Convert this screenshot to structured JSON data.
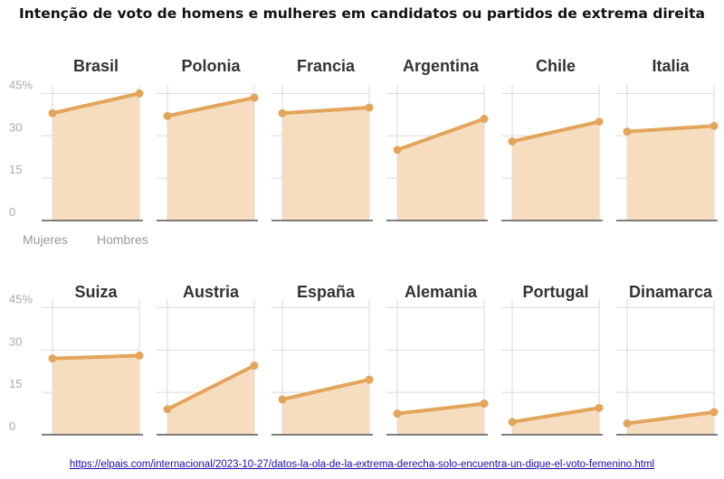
{
  "title": "Intenção de voto de homens e mulheres em candidatos ou partidos de extrema direita",
  "source_url": "https://elpais.com/internacional/2023-10-27/datos-la-ola-de-la-extrema-derecha-solo-encuentra-un-dique-el-voto-femenino.html",
  "colors": {
    "line": "#e2a55a",
    "area": "#f6ddc0",
    "grid": "#d9d9d9",
    "axis": "#555555"
  },
  "chart_data": {
    "type": "area",
    "categories": [
      "Mujeres",
      "Hombres"
    ],
    "ylim": [
      0,
      48
    ],
    "yticks": [
      0,
      15,
      30,
      45
    ],
    "ytick_labels": [
      "0",
      "15",
      "30",
      "45%"
    ],
    "grid": true,
    "panels": [
      {
        "name": "Brasil",
        "values": [
          38,
          45
        ]
      },
      {
        "name": "Polonia",
        "values": [
          37,
          43.5
        ]
      },
      {
        "name": "Francia",
        "values": [
          38,
          40
        ]
      },
      {
        "name": "Argentina",
        "values": [
          25,
          36
        ]
      },
      {
        "name": "Chile",
        "values": [
          28,
          35
        ]
      },
      {
        "name": "Italia",
        "values": [
          31.5,
          33.5
        ]
      },
      {
        "name": "Suiza",
        "values": [
          27,
          28
        ]
      },
      {
        "name": "Austria",
        "values": [
          9,
          24.5
        ]
      },
      {
        "name": "España",
        "values": [
          12.5,
          19.5
        ]
      },
      {
        "name": "Alemania",
        "values": [
          7.5,
          11
        ]
      },
      {
        "name": "Portugal",
        "values": [
          4.5,
          9.5
        ]
      },
      {
        "name": "Dinamarca",
        "values": [
          4,
          8
        ]
      }
    ]
  }
}
